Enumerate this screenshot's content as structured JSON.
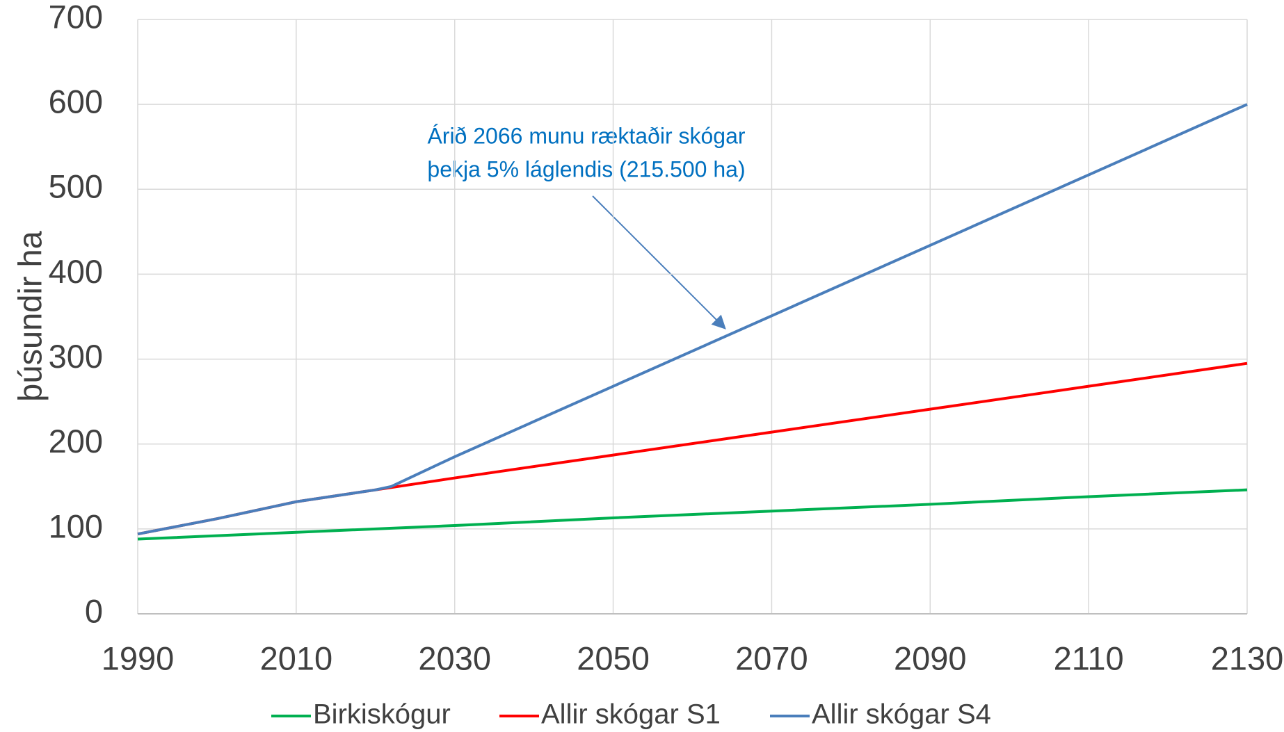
{
  "chart_data": {
    "type": "line",
    "ylabel": "þúsundir ha",
    "annotation": [
      "Árið 2066 munu ræktaðir skógar",
      "þekja 5% láglendis (215.500 ha)"
    ],
    "xlim": [
      1990,
      2130
    ],
    "xticks": [
      1990,
      2010,
      2030,
      2050,
      2070,
      2090,
      2110,
      2130
    ],
    "ylim": [
      0,
      700
    ],
    "yticks": [
      0,
      100,
      200,
      300,
      400,
      500,
      600,
      700
    ],
    "grid": true,
    "legend": "bottom",
    "series": [
      {
        "name": "Birkiskógur",
        "color": "#00b050",
        "x": [
          1990,
          2010,
          2030,
          2050,
          2070,
          2090,
          2110,
          2130
        ],
        "values": [
          88,
          96,
          104,
          113,
          121,
          129,
          138,
          146
        ]
      },
      {
        "name": "Allir skógar S1",
        "color": "#ff0000",
        "x": [
          1990,
          2000,
          2010,
          2020,
          2030,
          2050,
          2070,
          2090,
          2110,
          2130
        ],
        "values": [
          94,
          112,
          132,
          146,
          160,
          187,
          214,
          241,
          268,
          295
        ]
      },
      {
        "name": "Allir skógar S4",
        "color": "#4a7ebb",
        "x": [
          1990,
          2000,
          2010,
          2020,
          2022,
          2030,
          2050,
          2070,
          2090,
          2110,
          2130
        ],
        "values": [
          94,
          112,
          132,
          146,
          150,
          185,
          268,
          351,
          434,
          517,
          600
        ]
      }
    ]
  }
}
